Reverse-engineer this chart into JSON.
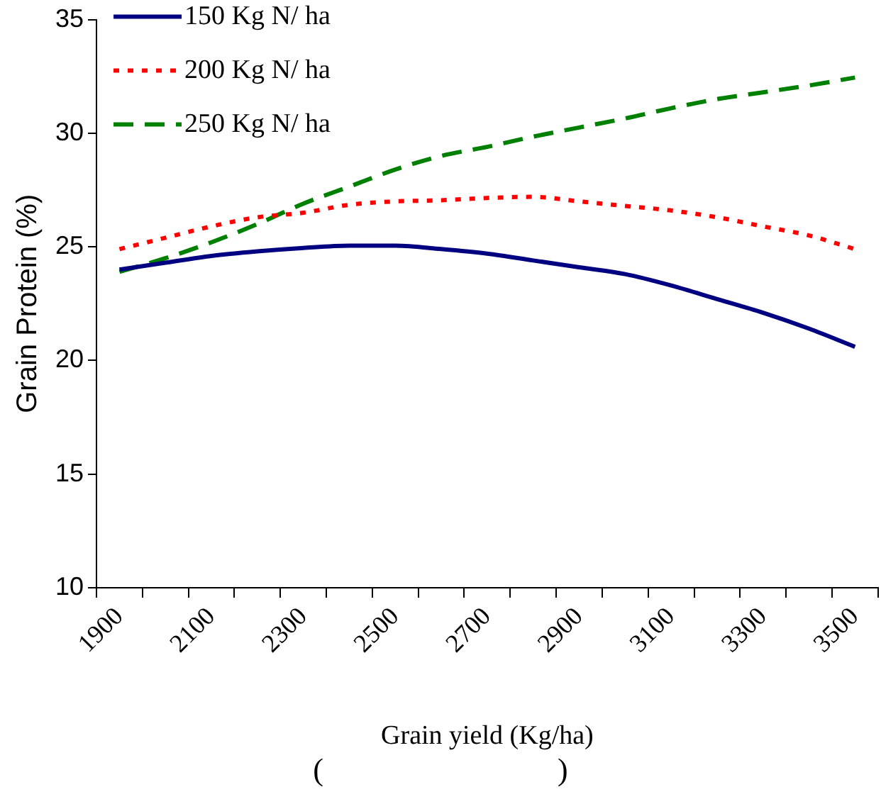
{
  "chart_data": {
    "type": "line",
    "xlabel": "Grain yield (Kg/ha)",
    "ylabel": "Grain Protein (%)",
    "categories": [
      "1900",
      null,
      "2100",
      null,
      "2300",
      null,
      "2500",
      null,
      "2700",
      null,
      "2900",
      null,
      "3100",
      null,
      "3300",
      null,
      "3500"
    ],
    "series": [
      {
        "name": "150 Kg N/ ha",
        "color": "#000080",
        "line_style": "solid",
        "values": [
          24.0,
          24.3,
          24.6,
          24.8,
          24.95,
          25.05,
          25.05,
          24.9,
          24.7,
          24.4,
          24.1,
          23.8,
          23.3,
          22.7,
          22.1,
          21.4,
          20.6
        ]
      },
      {
        "name": "200 Kg N/ ha",
        "color": "#ff0000",
        "line_style": "dotted",
        "values": [
          24.9,
          25.4,
          25.9,
          26.3,
          26.5,
          26.85,
          27.0,
          27.05,
          27.15,
          27.2,
          27.0,
          26.8,
          26.6,
          26.3,
          25.9,
          25.5,
          24.9
        ]
      },
      {
        "name": "250 Kg N/ ha",
        "color": "#008000",
        "line_style": "dashed",
        "values": [
          23.9,
          24.5,
          25.2,
          26.0,
          26.9,
          27.65,
          28.4,
          29.0,
          29.4,
          29.85,
          30.25,
          30.65,
          31.1,
          31.5,
          31.8,
          32.1,
          32.45
        ]
      }
    ],
    "ylim": [
      10,
      35
    ],
    "yticks": [
      10,
      15,
      20,
      25,
      30,
      35
    ],
    "grid": false,
    "legend": "top left",
    "marker": "none",
    "annotations": [
      "(                              )"
    ]
  }
}
